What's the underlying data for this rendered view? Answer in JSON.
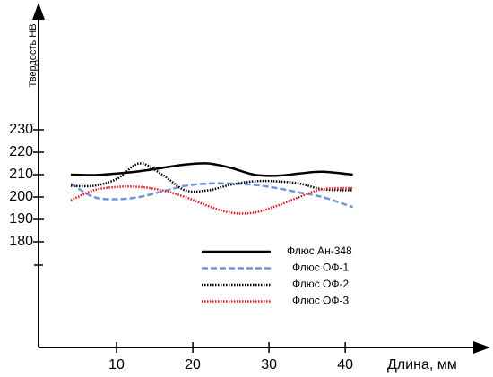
{
  "chart_data": {
    "type": "line",
    "y_label": "Твердость НВ",
    "x_label": "Длина, мм",
    "x": [
      4,
      7,
      10,
      13,
      16,
      19,
      22,
      25,
      28,
      31,
      34,
      37,
      41
    ],
    "series": [
      {
        "name": "Флюс Ан-348",
        "color": "#000000",
        "dash": "solid",
        "values": [
          210,
          209.8,
          210.5,
          211.5,
          213,
          214.5,
          215,
          213,
          210,
          209.5,
          210.5,
          211.3,
          210
        ]
      },
      {
        "name": "Флюс ОФ-1",
        "color": "#6f95d6",
        "dash": "dashed",
        "values": [
          206,
          200,
          199,
          200,
          202.5,
          205,
          206,
          206,
          205.5,
          204,
          202,
          200,
          195.5
        ]
      },
      {
        "name": "Флюс ОФ-2",
        "color": "#000000",
        "dash": "dotted",
        "values": [
          205,
          205,
          208,
          215,
          210,
          203,
          203,
          205.5,
          207,
          207,
          206,
          203.5,
          203
        ]
      },
      {
        "name": "Флюс ОФ-3",
        "color": "#e0141e",
        "dash": "dotted",
        "values": [
          198.5,
          203,
          204.5,
          204.5,
          203,
          200,
          196,
          193,
          193,
          196,
          200,
          203.5,
          204
        ]
      }
    ],
    "xlim": [
      0,
      58.8
    ],
    "xticks": [
      10,
      20,
      30,
      40
    ],
    "ylim": [
      132.8,
      286
    ],
    "yticks": [
      180,
      190,
      200,
      210,
      220,
      230
    ]
  }
}
